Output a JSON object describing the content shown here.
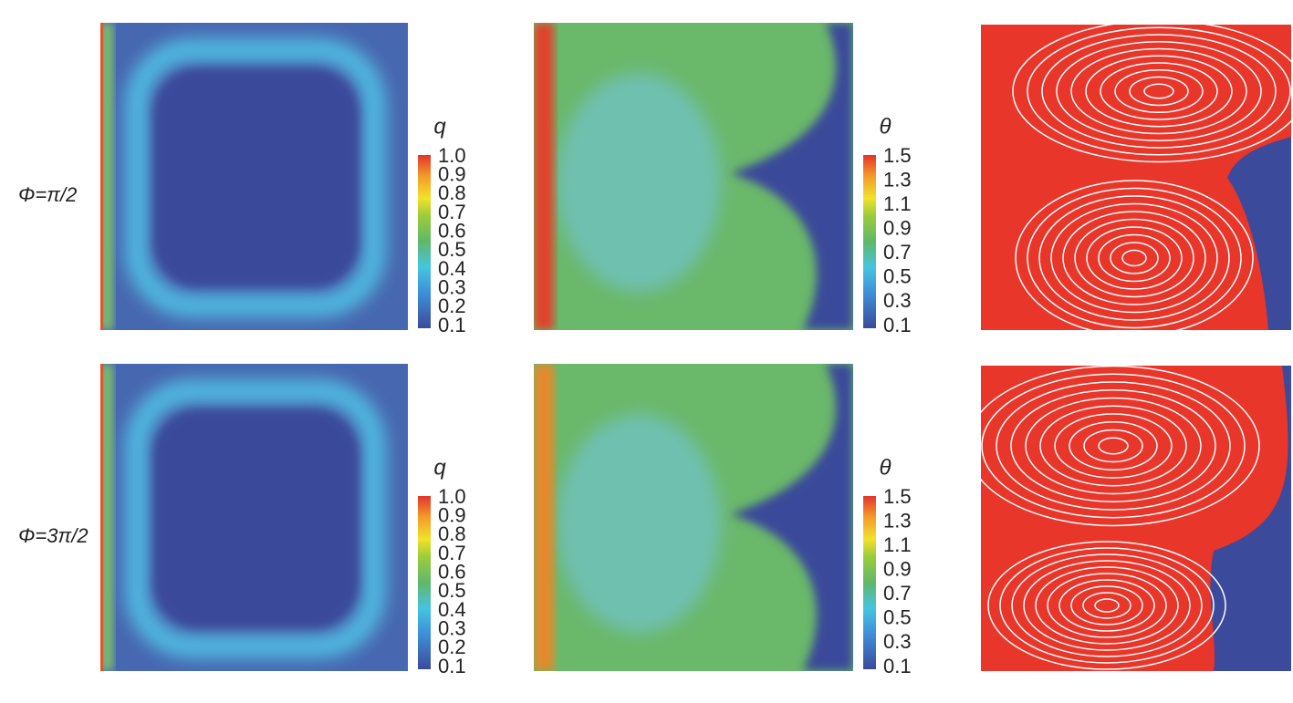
{
  "rows": [
    {
      "label": "Φ=π/2"
    },
    {
      "label": "Φ=3π/2"
    }
  ],
  "colorbars": {
    "q": {
      "title": "q",
      "ticks": [
        "1.0",
        "0.9",
        "0.8",
        "0.7",
        "0.6",
        "0.5",
        "0.4",
        "0.3",
        "0.2",
        "0.1"
      ]
    },
    "theta": {
      "title": "θ",
      "ticks": [
        "1.5",
        "1.3",
        "1.1",
        "0.9",
        "0.7",
        "0.5",
        "0.3",
        "0.1"
      ]
    }
  }
}
